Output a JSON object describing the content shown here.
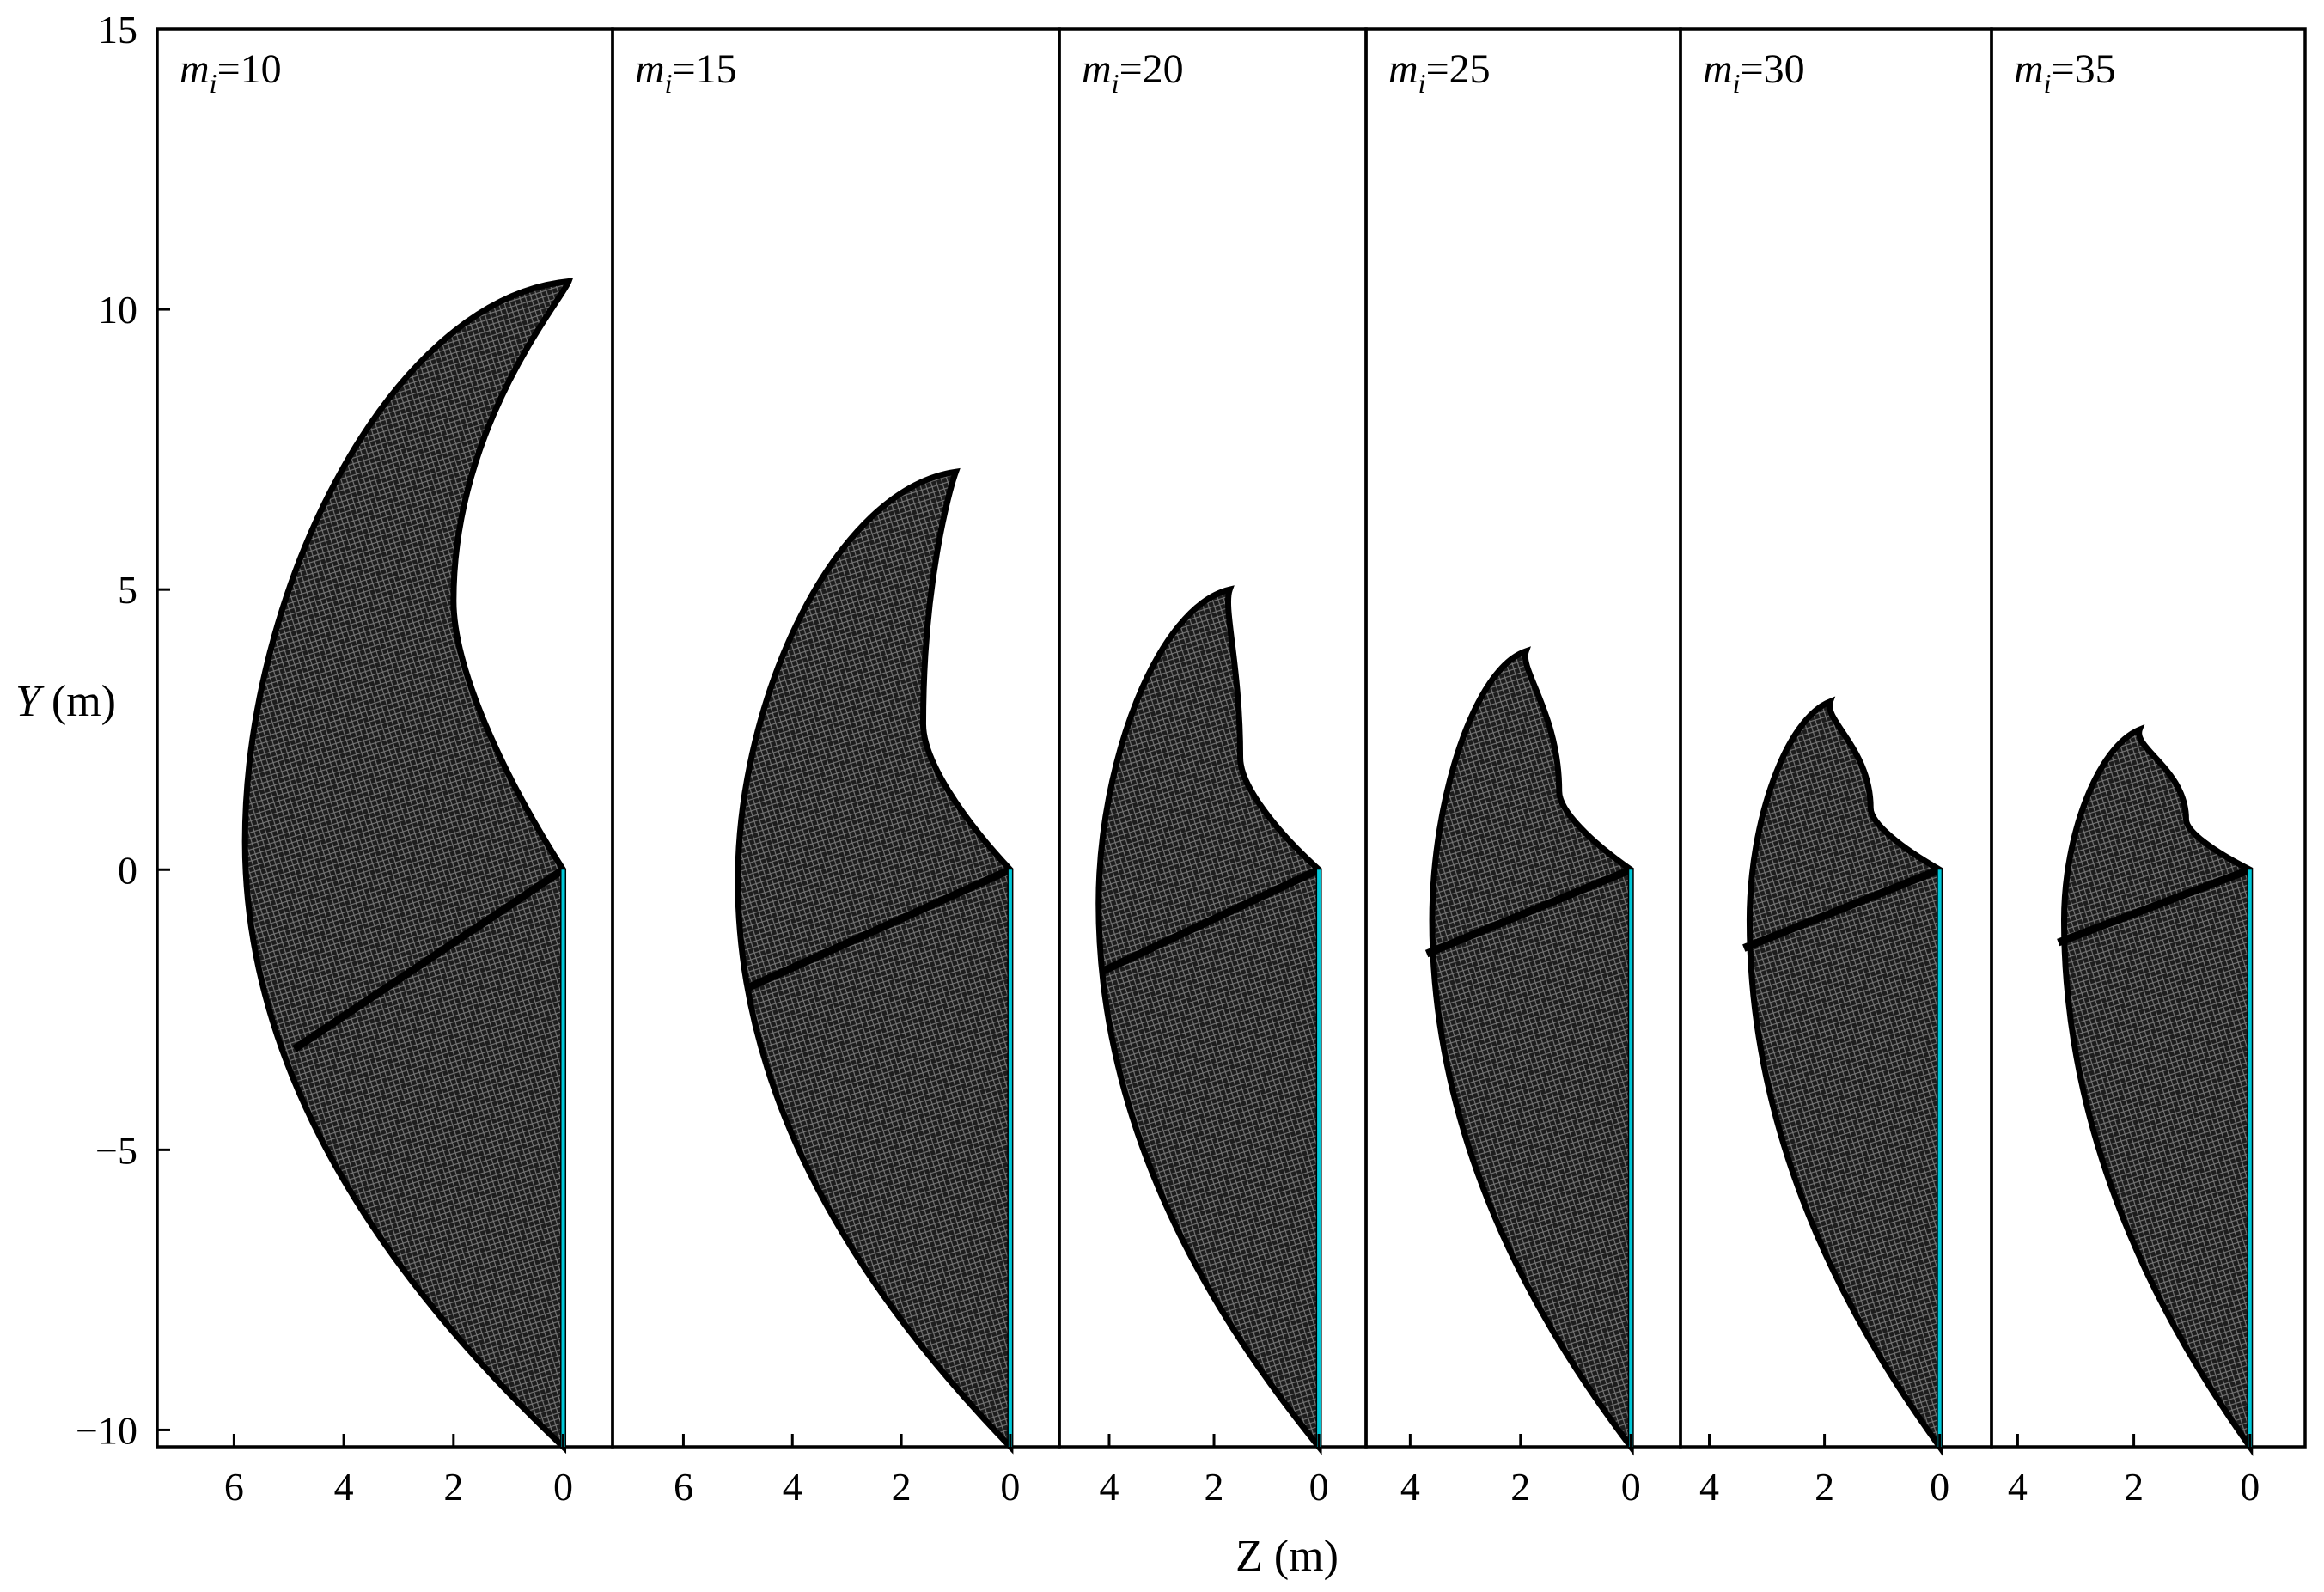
{
  "chart_data": {
    "type": "area",
    "xlabel": "Z (m)",
    "ylabel": "Y (m)",
    "ylim": [
      -10.3,
      15
    ],
    "y_ticks": [
      {
        "value": 15,
        "label": "15"
      },
      {
        "value": 10,
        "label": "10"
      },
      {
        "value": 5,
        "label": "5"
      },
      {
        "value": 0,
        "label": "0"
      },
      {
        "value": -5,
        "label": "−5"
      },
      {
        "value": -10,
        "label": "−10"
      }
    ],
    "colors": {
      "mesh": "#111111",
      "mesh_mid": "#4a4a4a",
      "axis_edge": "#00c8d8",
      "frame": "#000000"
    },
    "panels": [
      {
        "label_var": "m",
        "label_sub": "i",
        "label_rest": "=10",
        "xlim": [
          7.4,
          -0.9
        ],
        "x_ticks": [
          {
            "value": 6,
            "label": "6"
          },
          {
            "value": 4,
            "label": "4"
          },
          {
            "value": 2,
            "label": "2"
          },
          {
            "value": 0,
            "label": "0"
          }
        ],
        "tip": {
          "z": -0.1,
          "y": 10.5
        },
        "top_inner": {
          "z": 2.0,
          "y": 4.8
        },
        "top_outer": {
          "z": 5.8,
          "y": 0.5
        },
        "root": {
          "z": 0.0,
          "y": 0.0
        },
        "seam": {
          "z": 4.9,
          "y": -3.2
        },
        "bottom": {
          "z": 0.0,
          "y": -10.3
        }
      },
      {
        "label_var": "m",
        "label_sub": "i",
        "label_rest": "=15",
        "xlim": [
          7.3,
          -0.9
        ],
        "x_ticks": [
          {
            "value": 6,
            "label": "6"
          },
          {
            "value": 4,
            "label": "4"
          },
          {
            "value": 2,
            "label": "2"
          },
          {
            "value": 0,
            "label": "0"
          }
        ],
        "tip": {
          "z": 1.0,
          "y": 7.1
        },
        "top_inner": {
          "z": 1.6,
          "y": 2.6
        },
        "top_outer": {
          "z": 5.0,
          "y": -0.2
        },
        "root": {
          "z": 0.0,
          "y": 0.0
        },
        "seam": {
          "z": 4.8,
          "y": -2.1
        },
        "bottom": {
          "z": 0.0,
          "y": -10.3
        }
      },
      {
        "label_var": "m",
        "label_sub": "i",
        "label_rest": "=20",
        "xlim": [
          4.95,
          -0.9
        ],
        "x_ticks": [
          {
            "value": 4,
            "label": "4"
          },
          {
            "value": 2,
            "label": "2"
          },
          {
            "value": 0,
            "label": "0"
          }
        ],
        "tip": {
          "z": 1.7,
          "y": 5.0
        },
        "top_inner": {
          "z": 1.5,
          "y": 2.0
        },
        "top_outer": {
          "z": 4.2,
          "y": -0.6
        },
        "root": {
          "z": 0.0,
          "y": 0.0
        },
        "seam": {
          "z": 4.1,
          "y": -1.8
        },
        "bottom": {
          "z": 0.0,
          "y": -10.3
        }
      },
      {
        "label_var": "m",
        "label_sub": "i",
        "label_rest": "=25",
        "xlim": [
          4.8,
          -0.9
        ],
        "x_ticks": [
          {
            "value": 4,
            "label": "4"
          },
          {
            "value": 2,
            "label": "2"
          },
          {
            "value": 0,
            "label": "0"
          }
        ],
        "tip": {
          "z": 1.9,
          "y": 3.9
        },
        "top_inner": {
          "z": 1.3,
          "y": 1.4
        },
        "top_outer": {
          "z": 3.6,
          "y": -0.9
        },
        "root": {
          "z": 0.0,
          "y": 0.0
        },
        "seam": {
          "z": 3.7,
          "y": -1.5
        },
        "bottom": {
          "z": 0.0,
          "y": -10.3
        }
      },
      {
        "label_var": "m",
        "label_sub": "i",
        "label_rest": "=30",
        "xlim": [
          4.5,
          -0.9
        ],
        "x_ticks": [
          {
            "value": 4,
            "label": "4"
          },
          {
            "value": 2,
            "label": "2"
          },
          {
            "value": 0,
            "label": "0"
          }
        ],
        "tip": {
          "z": 1.9,
          "y": 3.0
        },
        "top_inner": {
          "z": 1.2,
          "y": 1.1
        },
        "top_outer": {
          "z": 3.3,
          "y": -0.9
        },
        "root": {
          "z": 0.0,
          "y": 0.0
        },
        "seam": {
          "z": 3.4,
          "y": -1.4
        },
        "bottom": {
          "z": 0.0,
          "y": -10.3
        }
      },
      {
        "label_var": "m",
        "label_sub": "i",
        "label_rest": "=35",
        "xlim": [
          4.45,
          -0.95
        ],
        "x_ticks": [
          {
            "value": 4,
            "label": "4"
          },
          {
            "value": 2,
            "label": "2"
          },
          {
            "value": 0,
            "label": "0"
          }
        ],
        "tip": {
          "z": 1.9,
          "y": 2.5
        },
        "top_inner": {
          "z": 1.1,
          "y": 0.9
        },
        "top_outer": {
          "z": 3.2,
          "y": -0.9
        },
        "root": {
          "z": 0.0,
          "y": 0.0
        },
        "seam": {
          "z": 3.3,
          "y": -1.3
        },
        "bottom": {
          "z": 0.0,
          "y": -10.3
        }
      }
    ]
  }
}
